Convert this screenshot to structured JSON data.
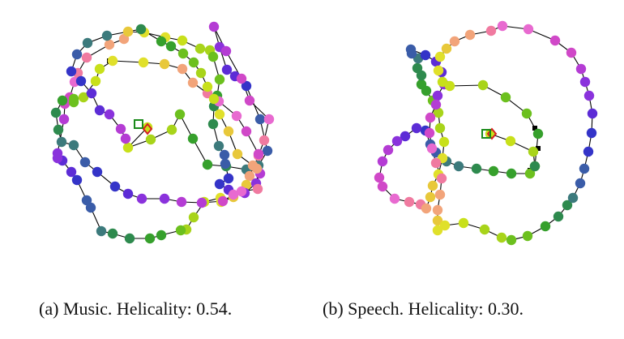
{
  "panels": [
    {
      "caption": "(a) Music. Helicality: 0.54.",
      "path": [
        [
          182,
          157
        ],
        [
          158,
          182
        ],
        [
          186,
          172
        ],
        [
          212,
          160
        ],
        [
          222,
          141
        ],
        [
          238,
          171
        ],
        [
          256,
          203
        ],
        [
          279,
          205
        ],
        [
          304,
          209
        ],
        [
          319,
          204
        ],
        [
          330,
          186
        ],
        [
          321,
          147
        ],
        [
          304,
          106
        ],
        [
          290,
          94
        ],
        [
          280,
          86
        ],
        [
          271,
          58
        ],
        [
          264,
          33
        ],
        [
          279,
          63
        ],
        [
          298,
          97
        ],
        [
          308,
          124
        ],
        [
          332,
          147
        ],
        [
          326,
          173
        ],
        [
          319,
          192
        ],
        [
          308,
          217
        ],
        [
          304,
          228
        ],
        [
          288,
          243
        ],
        [
          273,
          249
        ],
        [
          272,
          244
        ],
        [
          252,
          249
        ],
        [
          239,
          268
        ],
        [
          230,
          283
        ],
        [
          223,
          284
        ],
        [
          199,
          290
        ],
        [
          185,
          294
        ],
        [
          160,
          294
        ],
        [
          139,
          288
        ],
        [
          125,
          285
        ],
        [
          112,
          256
        ],
        [
          107,
          247
        ],
        [
          95,
          222
        ],
        [
          88,
          212
        ],
        [
          77,
          198
        ],
        [
          71,
          195
        ],
        [
          71,
          189
        ],
        [
          79,
          147
        ],
        [
          80,
          128
        ],
        [
          86,
          120
        ],
        [
          92,
          101
        ],
        [
          96,
          90
        ],
        [
          107,
          71
        ],
        [
          135,
          55
        ],
        [
          153,
          48
        ],
        [
          158,
          39
        ],
        [
          178,
          40
        ],
        [
          204,
          46
        ],
        [
          225,
          50
        ],
        [
          247,
          60
        ],
        [
          259,
          62
        ],
        [
          263,
          70
        ],
        [
          271,
          98
        ],
        [
          268,
          118
        ],
        [
          264,
          131
        ],
        [
          263,
          153
        ],
        [
          270,
          180
        ],
        [
          277,
          191
        ],
        [
          278,
          202
        ],
        [
          282,
          220
        ],
        [
          271,
          227
        ],
        [
          282,
          234
        ],
        [
          302,
          238
        ],
        [
          316,
          226
        ],
        [
          321,
          214
        ],
        [
          319,
          190
        ],
        [
          304,
          162
        ],
        [
          292,
          143
        ],
        [
          270,
          125
        ],
        [
          256,
          115
        ],
        [
          238,
          102
        ],
        [
          225,
          85
        ],
        [
          203,
          79
        ],
        [
          177,
          77
        ],
        [
          139,
          75
        ],
        [
          123,
          85
        ],
        [
          118,
          100
        ],
        [
          103,
          120
        ],
        [
          91,
          122
        ],
        [
          91,
          126
        ],
        [
          77,
          124
        ],
        [
          69,
          139
        ],
        [
          72,
          160
        ],
        [
          76,
          175
        ],
        [
          91,
          179
        ],
        [
          105,
          200
        ],
        [
          120,
          212
        ],
        [
          142,
          230
        ],
        [
          158,
          239
        ],
        [
          175,
          245
        ],
        [
          203,
          245
        ],
        [
          224,
          249
        ],
        [
          249,
          250
        ],
        [
          275,
          248
        ],
        [
          288,
          240
        ],
        [
          298,
          236
        ],
        [
          318,
          233
        ],
        [
          317,
          208
        ],
        [
          312,
          204
        ],
        [
          293,
          190
        ],
        [
          282,
          162
        ],
        [
          271,
          141
        ],
        [
          264,
          122
        ],
        [
          256,
          107
        ],
        [
          248,
          90
        ],
        [
          239,
          77
        ],
        [
          226,
          66
        ],
        [
          211,
          57
        ],
        [
          199,
          51
        ],
        [
          174,
          36
        ],
        [
          132,
          44
        ],
        [
          108,
          53
        ],
        [
          95,
          67
        ],
        [
          88,
          88
        ],
        [
          100,
          100
        ],
        [
          113,
          115
        ],
        [
          123,
          136
        ],
        [
          135,
          141
        ],
        [
          149,
          159
        ],
        [
          155,
          171
        ]
      ],
      "markers": [
        {
          "shape": "square",
          "color": "#1a8a1a"
        },
        {
          "shape": "diamond",
          "color": "#d42020"
        }
      ]
    },
    {
      "caption": "(b) Speech. Helicality: 0.30.",
      "path": [
        [
          605,
          165
        ],
        [
          630,
          174
        ],
        [
          658,
          187
        ],
        [
          660,
          205
        ],
        [
          654,
          214
        ],
        [
          631,
          214
        ],
        [
          609,
          211
        ],
        [
          588,
          208
        ],
        [
          566,
          205
        ],
        [
          551,
          199
        ],
        [
          538,
          188
        ],
        [
          531,
          178
        ],
        [
          525,
          161
        ],
        [
          514,
          158
        ],
        [
          500,
          168
        ],
        [
          490,
          174
        ],
        [
          479,
          185
        ],
        [
          472,
          199
        ],
        [
          468,
          219
        ],
        [
          472,
          230
        ],
        [
          487,
          245
        ],
        [
          505,
          249
        ],
        [
          519,
          252
        ],
        [
          526,
          257
        ],
        [
          531,
          243
        ],
        [
          534,
          229
        ],
        [
          541,
          215
        ],
        [
          546,
          195
        ],
        [
          548,
          175
        ],
        [
          543,
          158
        ],
        [
          541,
          139
        ],
        [
          534,
          124
        ],
        [
          526,
          112
        ],
        [
          520,
          104
        ],
        [
          520,
          93
        ],
        [
          515,
          84
        ],
        [
          516,
          72
        ],
        [
          508,
          66
        ],
        [
          507,
          61
        ],
        [
          525,
          68
        ],
        [
          538,
          76
        ],
        [
          545,
          89
        ],
        [
          548,
          104
        ],
        [
          540,
          118
        ],
        [
          538,
          129
        ],
        [
          531,
          145
        ],
        [
          530,
          164
        ],
        [
          533,
          183
        ],
        [
          538,
          201
        ],
        [
          545,
          220
        ],
        [
          543,
          240
        ],
        [
          540,
          259
        ],
        [
          540,
          272
        ],
        [
          540,
          284
        ],
        [
          549,
          278
        ],
        [
          572,
          275
        ],
        [
          598,
          283
        ],
        [
          619,
          293
        ],
        [
          631,
          296
        ],
        [
          651,
          291
        ],
        [
          673,
          279
        ],
        [
          689,
          267
        ],
        [
          700,
          253
        ],
        [
          707,
          244
        ],
        [
          716,
          226
        ],
        [
          721,
          208
        ],
        [
          726,
          187
        ],
        [
          730,
          164
        ],
        [
          731,
          140
        ],
        [
          727,
          118
        ],
        [
          722,
          101
        ],
        [
          717,
          85
        ],
        [
          705,
          65
        ],
        [
          685,
          50
        ],
        [
          652,
          36
        ],
        [
          620,
          32
        ],
        [
          606,
          38
        ],
        [
          580,
          43
        ],
        [
          561,
          51
        ],
        [
          551,
          60
        ],
        [
          543,
          70
        ],
        [
          541,
          87
        ],
        [
          546,
          101
        ],
        [
          555,
          106
        ],
        [
          596,
          105
        ],
        [
          624,
          120
        ],
        [
          650,
          140
        ],
        [
          664,
          165
        ],
        [
          660,
          205
        ]
      ],
      "markers": [
        {
          "shape": "diamond",
          "color": "#d42020"
        },
        {
          "shape": "square",
          "color": "#1a8a1a"
        }
      ]
    }
  ]
}
